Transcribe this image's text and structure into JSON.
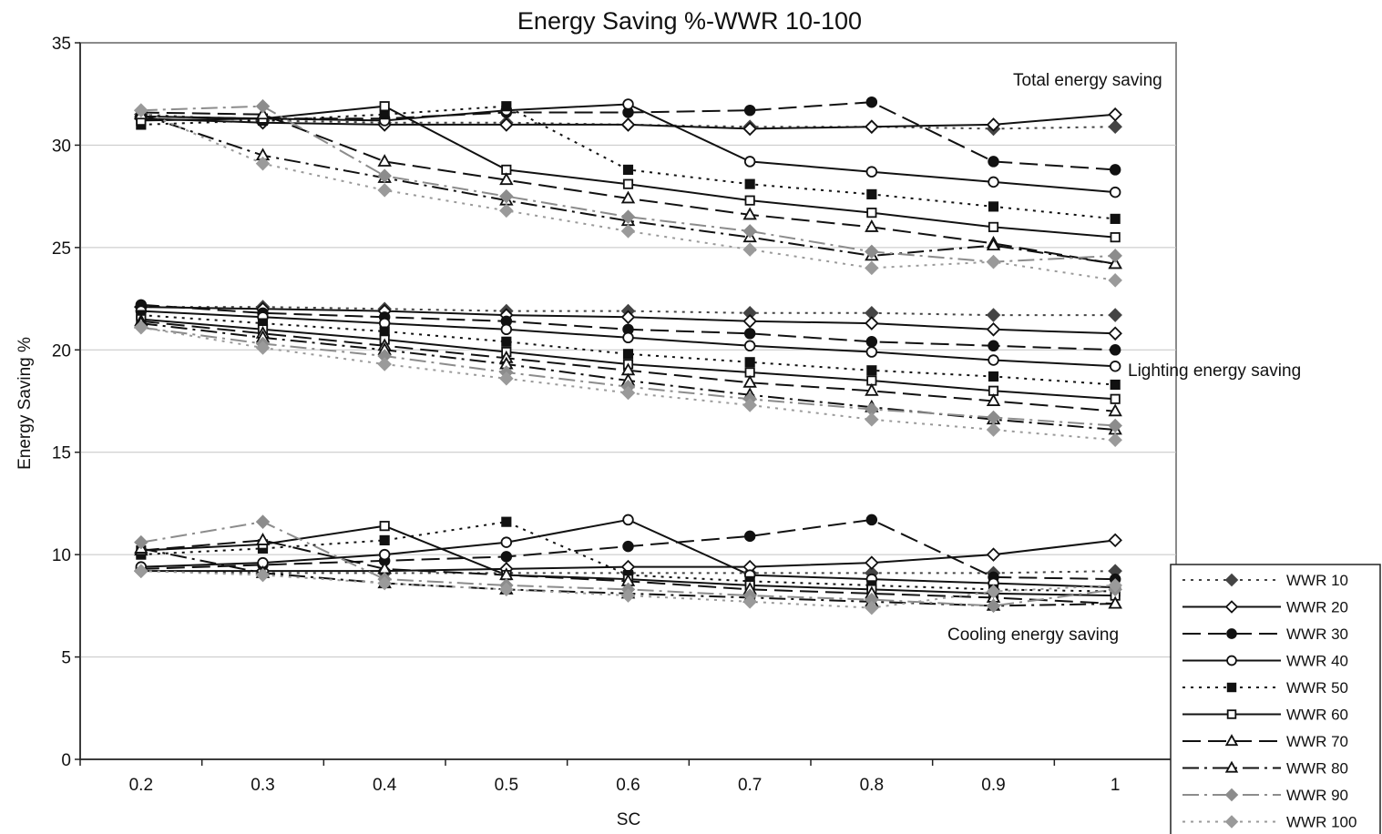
{
  "chart_data": {
    "type": "line",
    "title": "Energy Saving %-WWR 10-100",
    "xlabel": "SC",
    "ylabel": "Energy Saving %",
    "x": [
      0.2,
      0.3,
      0.4,
      0.5,
      0.6,
      0.7,
      0.8,
      0.9,
      1
    ],
    "x_tick_labels": [
      "0.2",
      "0.3",
      "0.4",
      "0.5",
      "0.6",
      "0.7",
      "0.8",
      "0.9",
      "1"
    ],
    "ylim": [
      0,
      35
    ],
    "y_ticks": [
      0,
      5,
      10,
      15,
      20,
      25,
      30,
      35
    ],
    "grid": "horizontal",
    "legend_position": "bottom-right",
    "annotations": [
      {
        "text": "Total energy saving"
      },
      {
        "text": "Lighting energy saving"
      },
      {
        "text": "Cooling energy saving"
      }
    ],
    "series": [
      {
        "name": "WWR 10",
        "color": "#444444",
        "dash": "dotted",
        "marker": "diamond-filled",
        "total": [
          31.5,
          31.2,
          31.1,
          31.1,
          31.0,
          30.9,
          30.9,
          30.8,
          30.9
        ],
        "lighting": [
          22.1,
          22.1,
          22.0,
          21.9,
          21.9,
          21.8,
          21.8,
          21.7,
          21.7
        ],
        "cooling": [
          9.2,
          9.1,
          9.1,
          9.1,
          9.1,
          9.1,
          9.1,
          9.1,
          9.2
        ]
      },
      {
        "name": "WWR 20",
        "color": "#111111",
        "dash": "solid",
        "marker": "diamond-open",
        "total": [
          31.3,
          31.1,
          31.0,
          31.0,
          31.0,
          30.8,
          30.9,
          31.0,
          31.5
        ],
        "lighting": [
          22.1,
          22.0,
          21.9,
          21.7,
          21.6,
          21.4,
          21.3,
          21.0,
          20.8
        ],
        "cooling": [
          9.2,
          9.2,
          9.2,
          9.3,
          9.4,
          9.4,
          9.6,
          10.0,
          10.7
        ]
      },
      {
        "name": "WWR 30",
        "color": "#111111",
        "dash": "longdash",
        "marker": "circle-filled",
        "total": [
          31.4,
          31.3,
          31.3,
          31.6,
          31.6,
          31.7,
          32.1,
          29.2,
          28.8
        ],
        "lighting": [
          22.2,
          21.8,
          21.6,
          21.4,
          21.0,
          20.8,
          20.4,
          20.2,
          20.0
        ],
        "cooling": [
          9.3,
          9.5,
          9.7,
          9.9,
          10.4,
          10.9,
          11.7,
          8.9,
          8.8
        ]
      },
      {
        "name": "WWR 40",
        "color": "#111111",
        "dash": "solid",
        "marker": "circle-open",
        "total": [
          31.4,
          31.3,
          31.2,
          31.7,
          32.0,
          29.2,
          28.7,
          28.2,
          27.7
        ],
        "lighting": [
          21.9,
          21.6,
          21.3,
          21.0,
          20.6,
          20.2,
          19.9,
          19.5,
          19.2
        ],
        "cooling": [
          9.4,
          9.6,
          10.0,
          10.6,
          11.7,
          9.0,
          8.8,
          8.6,
          8.4
        ]
      },
      {
        "name": "WWR 50",
        "color": "#111111",
        "dash": "dotted",
        "marker": "square-filled",
        "total": [
          31.0,
          31.2,
          31.5,
          31.9,
          28.8,
          28.1,
          27.6,
          27.0,
          26.4
        ],
        "lighting": [
          21.7,
          21.3,
          20.9,
          20.4,
          19.8,
          19.4,
          19.0,
          18.7,
          18.3
        ],
        "cooling": [
          10.0,
          10.3,
          10.7,
          11.6,
          9.0,
          8.7,
          8.5,
          8.3,
          8.2
        ]
      },
      {
        "name": "WWR 60",
        "color": "#111111",
        "dash": "solid",
        "marker": "square-open",
        "total": [
          31.2,
          31.3,
          31.9,
          28.8,
          28.1,
          27.3,
          26.7,
          26.0,
          25.5
        ],
        "lighting": [
          21.5,
          21.0,
          20.5,
          19.9,
          19.3,
          18.9,
          18.5,
          18.0,
          17.6
        ],
        "cooling": [
          10.2,
          10.5,
          11.4,
          9.0,
          8.8,
          8.5,
          8.3,
          8.1,
          8.0
        ]
      },
      {
        "name": "WWR 70",
        "color": "#111111",
        "dash": "longdash",
        "marker": "triangle-open",
        "total": [
          31.6,
          31.5,
          29.2,
          28.3,
          27.4,
          26.6,
          26.0,
          25.2,
          24.2
        ],
        "lighting": [
          21.4,
          20.8,
          20.2,
          19.6,
          19.0,
          18.4,
          18.0,
          17.5,
          17.0
        ],
        "cooling": [
          10.2,
          10.7,
          9.3,
          9.0,
          8.7,
          8.3,
          8.1,
          7.9,
          7.6
        ]
      },
      {
        "name": "WWR 80",
        "color": "#111111",
        "dash": "dashdot",
        "marker": "triangle-open",
        "total": [
          31.5,
          29.5,
          28.4,
          27.3,
          26.3,
          25.5,
          24.6,
          25.1,
          24.2
        ],
        "lighting": [
          21.3,
          20.6,
          20.0,
          19.3,
          18.5,
          17.8,
          17.2,
          16.6,
          16.1
        ],
        "cooling": [
          10.3,
          9.1,
          8.6,
          8.3,
          8.1,
          7.9,
          7.7,
          7.5,
          7.6
        ]
      },
      {
        "name": "WWR 90",
        "color": "#8c8c8c",
        "dash": "dashdot",
        "marker": "diamond-filled",
        "total": [
          31.7,
          31.9,
          28.5,
          27.5,
          26.5,
          25.8,
          24.8,
          24.3,
          24.6
        ],
        "lighting": [
          21.1,
          20.3,
          19.7,
          18.9,
          18.2,
          17.6,
          17.1,
          16.7,
          16.3
        ],
        "cooling": [
          10.6,
          11.6,
          8.8,
          8.5,
          8.3,
          8.0,
          7.8,
          7.5,
          8.3
        ]
      },
      {
        "name": "WWR 100",
        "color": "#9a9a9a",
        "dash": "dotted",
        "marker": "diamond-filled",
        "total": [
          31.7,
          29.1,
          27.8,
          26.8,
          25.8,
          24.9,
          24.0,
          24.3,
          23.4
        ],
        "lighting": [
          21.1,
          20.1,
          19.3,
          18.6,
          17.9,
          17.3,
          16.6,
          16.1,
          15.6
        ],
        "cooling": [
          9.2,
          9.0,
          8.6,
          8.3,
          8.0,
          7.7,
          7.4,
          8.2,
          8.5
        ]
      }
    ]
  }
}
